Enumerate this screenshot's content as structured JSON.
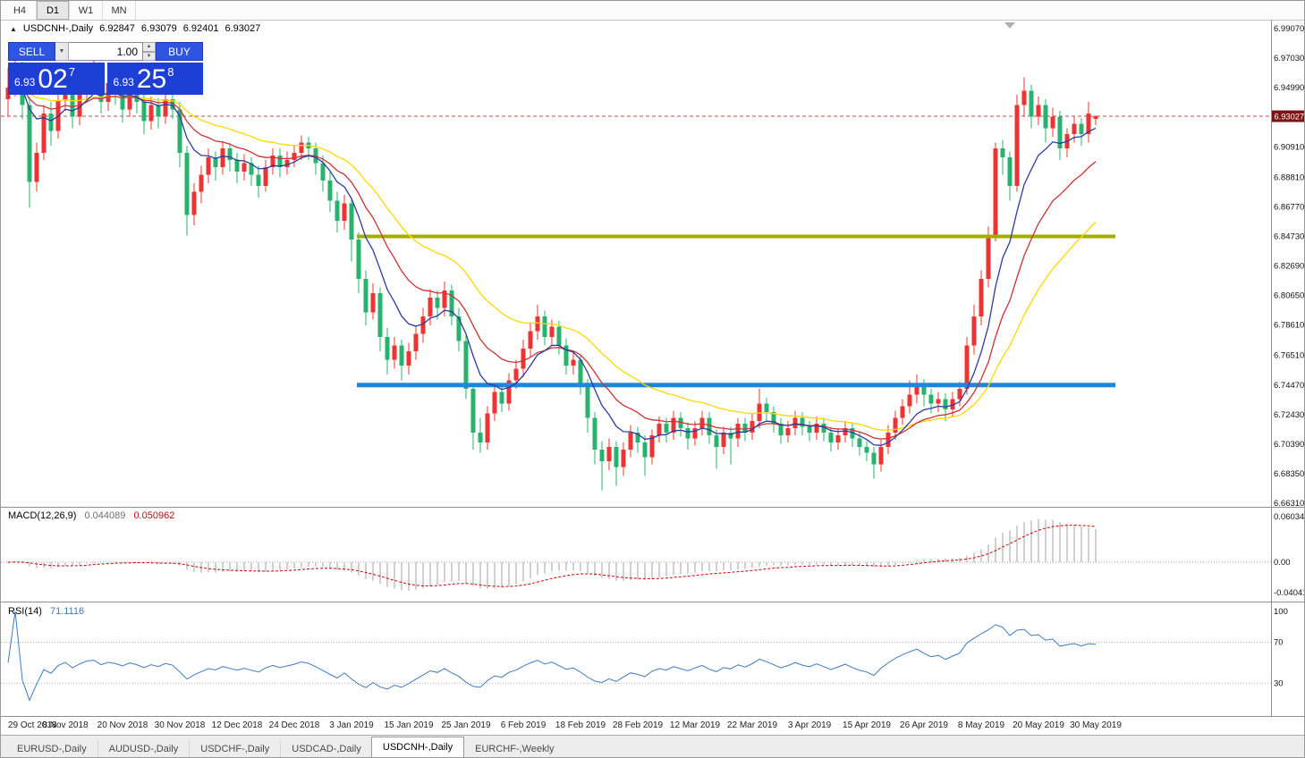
{
  "timeframe_toolbar": {
    "buttons": [
      "H4",
      "D1",
      "W1",
      "MN"
    ],
    "active": "D1"
  },
  "icons": {
    "panel_toggle": "▲",
    "dropdown_arrow": "▼",
    "spinner_up": "▲",
    "spinner_down": "▼"
  },
  "chart_header": {
    "symbol": "USDCNH-,Daily",
    "open": "6.92847",
    "high": "6.93079",
    "low": "6.92401",
    "close": "6.93027"
  },
  "one_click": {
    "sell_label": "SELL",
    "buy_label": "BUY",
    "volume": "1.00",
    "sell_price": {
      "small": "6.93",
      "big": "02",
      "sup": "7"
    },
    "buy_price": {
      "small": "6.93",
      "big": "25",
      "sup": "8"
    },
    "button_color": "#2f55e0",
    "box_color": "#1e3fd6"
  },
  "price_axis": {
    "labels": [
      "6.99070",
      "6.97030",
      "6.94990",
      "6.90910",
      "6.88810",
      "6.86770",
      "6.84730",
      "6.82690",
      "6.80650",
      "6.78610",
      "6.76510",
      "6.74470",
      "6.72430",
      "6.70390",
      "6.68350",
      "6.66310"
    ],
    "current_tag": "6.93027",
    "tag_color": "#7c1416"
  },
  "macd_panel": {
    "name": "MACD(12,26,9)",
    "value_main": "0.044089",
    "value_signal": "0.050962",
    "axis_labels": [
      "0.06034",
      "0.00",
      "-0.04041"
    ]
  },
  "rsi_panel": {
    "name": "RSI(14)",
    "value": "71.1116",
    "axis_labels": [
      "100",
      "70",
      "30"
    ]
  },
  "bottom_tabs": {
    "active_index": 4,
    "tabs": [
      "EURUSD-,Daily",
      "AUDUSD-,Daily",
      "USDCHF-,Daily",
      "USDCAD-,Daily",
      "USDCNH-,Daily",
      "EURCHF-,Weekly"
    ]
  },
  "chart_data": {
    "type": "candlestick",
    "symbol": "USDCNH-",
    "timeframe": "Daily",
    "current_price": 6.93027,
    "price_range_displayed": [
      6.6625,
      6.9963
    ],
    "bull_color": "#ee3333",
    "bear_color": "#27b36e",
    "x_label_step": 8,
    "x_labels": [
      "29 Oct 2018",
      "8 Nov 2018",
      "20 Nov 2018",
      "30 Nov 2018",
      "12 Dec 2018",
      "24 Dec 2018",
      "3 Jan 2019",
      "15 Jan 2019",
      "25 Jan 2019",
      "6 Feb 2019",
      "18 Feb 2019",
      "28 Feb 2019",
      "12 Mar 2019",
      "22 Mar 2019",
      "3 Apr 2019",
      "15 Apr 2019",
      "26 Apr 2019",
      "8 May 2019",
      "20 May 2019",
      "30 May 2019"
    ],
    "candles": [
      [
        6.942,
        6.964,
        6.93,
        6.95
      ],
      [
        6.95,
        6.972,
        6.944,
        6.962
      ],
      [
        6.962,
        6.968,
        6.928,
        6.938
      ],
      [
        6.938,
        6.944,
        6.867,
        6.885
      ],
      [
        6.885,
        6.912,
        6.878,
        6.905
      ],
      [
        6.905,
        6.938,
        6.9,
        6.932
      ],
      [
        6.932,
        6.94,
        6.91,
        6.92
      ],
      [
        6.92,
        6.948,
        6.915,
        6.941
      ],
      [
        6.941,
        6.958,
        6.934,
        6.952
      ],
      [
        6.952,
        6.956,
        6.922,
        6.93
      ],
      [
        6.93,
        6.95,
        6.924,
        6.945
      ],
      [
        6.945,
        6.964,
        6.94,
        6.958
      ],
      [
        6.958,
        6.975,
        6.95,
        6.962
      ],
      [
        6.962,
        6.966,
        6.932,
        6.94
      ],
      [
        6.94,
        6.958,
        6.934,
        6.953
      ],
      [
        6.953,
        6.96,
        6.938,
        6.946
      ],
      [
        6.946,
        6.952,
        6.926,
        6.935
      ],
      [
        6.935,
        6.954,
        6.93,
        6.948
      ],
      [
        6.948,
        6.952,
        6.932,
        6.94
      ],
      [
        6.94,
        6.945,
        6.918,
        6.927
      ],
      [
        6.927,
        6.944,
        6.921,
        6.938
      ],
      [
        6.938,
        6.943,
        6.922,
        6.93
      ],
      [
        6.93,
        6.948,
        6.925,
        6.942
      ],
      [
        6.942,
        6.95,
        6.928,
        6.935
      ],
      [
        6.935,
        6.94,
        6.895,
        6.905
      ],
      [
        6.905,
        6.91,
        6.848,
        6.862
      ],
      [
        6.862,
        6.884,
        6.855,
        6.878
      ],
      [
        6.878,
        6.896,
        6.87,
        6.89
      ],
      [
        6.89,
        6.908,
        6.884,
        6.902
      ],
      [
        6.902,
        6.906,
        6.886,
        6.895
      ],
      [
        6.895,
        6.913,
        6.89,
        6.908
      ],
      [
        6.908,
        6.912,
        6.892,
        6.9
      ],
      [
        6.9,
        6.905,
        6.884,
        6.892
      ],
      [
        6.892,
        6.904,
        6.886,
        6.898
      ],
      [
        6.898,
        6.902,
        6.882,
        6.89
      ],
      [
        6.89,
        6.896,
        6.874,
        6.882
      ],
      [
        6.882,
        6.9,
        6.878,
        6.895
      ],
      [
        6.895,
        6.908,
        6.89,
        6.903
      ],
      [
        6.903,
        6.908,
        6.888,
        6.895
      ],
      [
        6.895,
        6.906,
        6.89,
        6.9
      ],
      [
        6.9,
        6.91,
        6.895,
        6.905
      ],
      [
        6.905,
        6.917,
        6.9,
        6.912
      ],
      [
        6.912,
        6.916,
        6.9,
        6.908
      ],
      [
        6.908,
        6.912,
        6.89,
        6.898
      ],
      [
        6.898,
        6.903,
        6.878,
        6.886
      ],
      [
        6.886,
        6.892,
        6.864,
        6.872
      ],
      [
        6.872,
        6.878,
        6.85,
        6.858
      ],
      [
        6.858,
        6.876,
        6.852,
        6.87
      ],
      [
        6.87,
        6.874,
        6.83,
        6.845
      ],
      [
        6.845,
        6.85,
        6.808,
        6.818
      ],
      [
        6.818,
        6.824,
        6.786,
        6.795
      ],
      [
        6.795,
        6.815,
        6.79,
        6.808
      ],
      [
        6.808,
        6.812,
        6.768,
        6.778
      ],
      [
        6.778,
        6.784,
        6.752,
        6.762
      ],
      [
        6.762,
        6.778,
        6.756,
        6.772
      ],
      [
        6.772,
        6.776,
        6.748,
        6.758
      ],
      [
        6.758,
        6.774,
        6.752,
        6.768
      ],
      [
        6.768,
        6.786,
        6.762,
        6.78
      ],
      [
        6.78,
        6.798,
        6.774,
        6.792
      ],
      [
        6.792,
        6.811,
        6.786,
        6.805
      ],
      [
        6.805,
        6.81,
        6.79,
        6.798
      ],
      [
        6.798,
        6.816,
        6.792,
        6.81
      ],
      [
        6.81,
        6.814,
        6.786,
        6.792
      ],
      [
        6.792,
        6.798,
        6.768,
        6.775
      ],
      [
        6.775,
        6.78,
        6.735,
        6.742
      ],
      [
        6.742,
        6.746,
        6.7,
        6.712
      ],
      [
        6.712,
        6.722,
        6.698,
        6.705
      ],
      [
        6.705,
        6.73,
        6.7,
        6.725
      ],
      [
        6.725,
        6.746,
        6.72,
        6.74
      ],
      [
        6.74,
        6.744,
        6.726,
        6.732
      ],
      [
        6.732,
        6.753,
        6.727,
        6.748
      ],
      [
        6.748,
        6.762,
        6.742,
        6.756
      ],
      [
        6.756,
        6.776,
        6.75,
        6.77
      ],
      [
        6.77,
        6.788,
        6.764,
        6.782
      ],
      [
        6.782,
        6.8,
        6.776,
        6.792
      ],
      [
        6.792,
        6.796,
        6.772,
        6.778
      ],
      [
        6.778,
        6.79,
        6.772,
        6.785
      ],
      [
        6.785,
        6.789,
        6.766,
        6.772
      ],
      [
        6.772,
        6.777,
        6.752,
        6.758
      ],
      [
        6.758,
        6.768,
        6.752,
        6.762
      ],
      [
        6.762,
        6.766,
        6.738,
        6.745
      ],
      [
        6.745,
        6.749,
        6.712,
        6.722
      ],
      [
        6.722,
        6.726,
        6.69,
        6.7
      ],
      [
        6.7,
        6.706,
        6.672,
        6.692
      ],
      [
        6.692,
        6.708,
        6.686,
        6.702
      ],
      [
        6.702,
        6.706,
        6.675,
        6.688
      ],
      [
        6.688,
        6.705,
        6.682,
        6.7
      ],
      [
        6.7,
        6.717,
        6.695,
        6.712
      ],
      [
        6.712,
        6.716,
        6.698,
        6.705
      ],
      [
        6.705,
        6.71,
        6.682,
        6.695
      ],
      [
        6.695,
        6.714,
        6.69,
        6.71
      ],
      [
        6.71,
        6.723,
        6.705,
        6.718
      ],
      [
        6.718,
        6.722,
        6.705,
        6.712
      ],
      [
        6.712,
        6.727,
        6.707,
        6.722
      ],
      [
        6.722,
        6.726,
        6.709,
        6.715
      ],
      [
        6.715,
        6.719,
        6.7,
        6.708
      ],
      [
        6.708,
        6.72,
        6.703,
        6.715
      ],
      [
        6.715,
        6.727,
        6.71,
        6.722
      ],
      [
        6.722,
        6.726,
        6.704,
        6.71
      ],
      [
        6.71,
        6.714,
        6.687,
        6.702
      ],
      [
        6.702,
        6.716,
        6.697,
        6.712
      ],
      [
        6.712,
        6.716,
        6.69,
        6.708
      ],
      [
        6.708,
        6.722,
        6.702,
        6.718
      ],
      [
        6.718,
        6.722,
        6.706,
        6.712
      ],
      [
        6.712,
        6.725,
        6.707,
        6.72
      ],
      [
        6.72,
        6.742,
        6.715,
        6.732
      ],
      [
        6.732,
        6.736,
        6.72,
        6.726
      ],
      [
        6.726,
        6.73,
        6.712,
        6.718
      ],
      [
        6.718,
        6.722,
        6.704,
        6.71
      ],
      [
        6.71,
        6.72,
        6.705,
        6.715
      ],
      [
        6.715,
        6.727,
        6.71,
        6.722
      ],
      [
        6.722,
        6.726,
        6.71,
        6.716
      ],
      [
        6.716,
        6.72,
        6.706,
        6.712
      ],
      [
        6.712,
        6.723,
        6.707,
        6.718
      ],
      [
        6.718,
        6.722,
        6.706,
        6.712
      ],
      [
        6.712,
        6.716,
        6.699,
        6.705
      ],
      [
        6.705,
        6.715,
        6.7,
        6.71
      ],
      [
        6.71,
        6.72,
        6.705,
        6.715
      ],
      [
        6.715,
        6.719,
        6.702,
        6.708
      ],
      [
        6.708,
        6.712,
        6.696,
        6.702
      ],
      [
        6.702,
        6.706,
        6.692,
        6.698
      ],
      [
        6.698,
        6.702,
        6.68,
        6.69
      ],
      [
        6.69,
        6.707,
        6.685,
        6.702
      ],
      [
        6.702,
        6.717,
        6.697,
        6.712
      ],
      [
        6.712,
        6.727,
        6.707,
        6.722
      ],
      [
        6.722,
        6.735,
        6.717,
        6.73
      ],
      [
        6.73,
        6.748,
        6.725,
        6.738
      ],
      [
        6.738,
        6.752,
        6.732,
        6.745
      ],
      [
        6.745,
        6.749,
        6.73,
        6.738
      ],
      [
        6.738,
        6.742,
        6.725,
        6.732
      ],
      [
        6.732,
        6.74,
        6.726,
        6.735
      ],
      [
        6.735,
        6.739,
        6.72,
        6.728
      ],
      [
        6.728,
        6.74,
        6.723,
        6.735
      ],
      [
        6.735,
        6.747,
        6.73,
        6.742
      ],
      [
        6.742,
        6.778,
        6.738,
        6.772
      ],
      [
        6.772,
        6.8,
        6.766,
        6.792
      ],
      [
        6.792,
        6.824,
        6.786,
        6.818
      ],
      [
        6.818,
        6.854,
        6.812,
        6.848
      ],
      [
        6.848,
        6.912,
        6.844,
        6.908
      ],
      [
        6.908,
        6.914,
        6.89,
        6.902
      ],
      [
        6.902,
        6.906,
        6.872,
        6.882
      ],
      [
        6.882,
        6.945,
        6.878,
        6.938
      ],
      [
        6.938,
        6.957,
        6.93,
        6.948
      ],
      [
        6.948,
        6.952,
        6.922,
        6.93
      ],
      [
        6.93,
        6.944,
        6.924,
        6.938
      ],
      [
        6.938,
        6.942,
        6.912,
        6.922
      ],
      [
        6.922,
        6.936,
        6.916,
        6.93
      ],
      [
        6.93,
        6.934,
        6.9,
        6.908
      ],
      [
        6.908,
        6.922,
        6.902,
        6.918
      ],
      [
        6.918,
        6.93,
        6.912,
        6.925
      ],
      [
        6.925,
        6.929,
        6.91,
        6.918
      ],
      [
        6.918,
        6.94,
        6.912,
        6.932
      ],
      [
        6.92847,
        6.93079,
        6.92401,
        6.93027
      ]
    ],
    "moving_averages": [
      {
        "type": "ema",
        "period": 30,
        "color": "#ffd800"
      },
      {
        "type": "ema",
        "period": 16,
        "color": "#cc3333"
      },
      {
        "type": "ema",
        "period": 8,
        "color": "#2c3a9e"
      }
    ],
    "horizontal_lines": [
      {
        "price": 6.8473,
        "color": "#a3ad00",
        "thickness": 4
      },
      {
        "price": 6.7447,
        "color": "#1f86dd",
        "thickness": 5
      }
    ],
    "bid_line": {
      "price": 6.93027,
      "color": "#c84b4b"
    },
    "macd": {
      "fast": 12,
      "slow": 26,
      "signal": 9,
      "histogram_color": "#c0c0c0",
      "signal_color": "#cc0000",
      "axis_values": [
        0.06034,
        0,
        -0.04041
      ]
    },
    "rsi": {
      "period": 14,
      "color": "#3e7bc0",
      "levels": [
        70,
        30
      ],
      "scale": [
        0,
        100
      ]
    }
  }
}
